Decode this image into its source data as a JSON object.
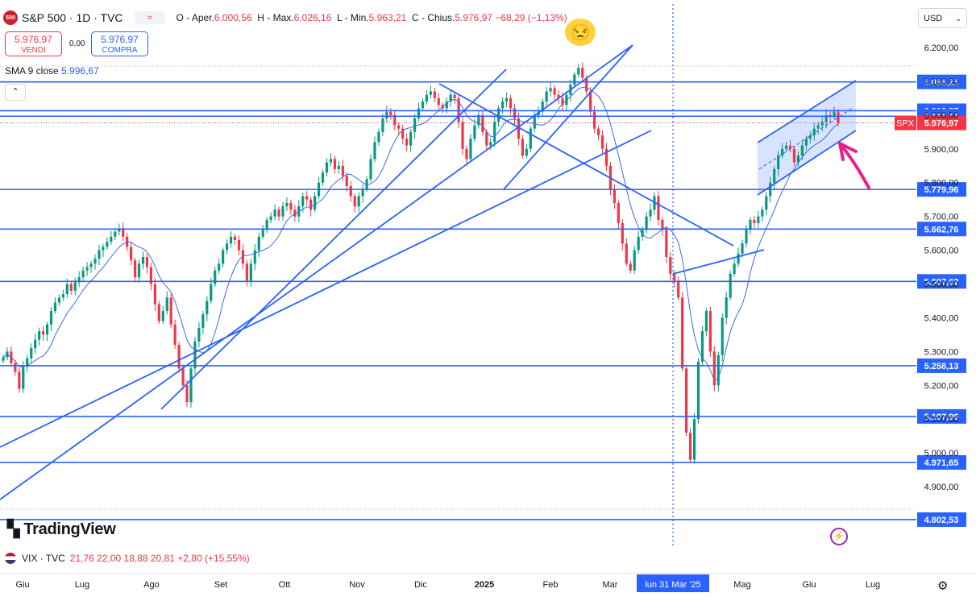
{
  "header": {
    "logo_text": "500",
    "symbol": "S&P 500 · 1D · TVC",
    "open": "6.000,56",
    "high": "6.026,16",
    "low": "5.963,21",
    "close": "5.976,97",
    "change": "−68,29 (−1,13%)",
    "labels": {
      "open": "O - Aper.",
      "high": "H - Max.",
      "low": "L - Min.",
      "close": "C - Chius."
    }
  },
  "trade": {
    "sell_price": "5.976,97",
    "sell_label": "VENDI",
    "spread": "0,00",
    "buy_price": "5.976,97",
    "buy_label": "COMPRA"
  },
  "indicator": {
    "label": "SMA 9 close",
    "value": "5.996,67"
  },
  "currency": "USD",
  "brand": "TradingView",
  "vix": {
    "label": "VIX · TVC",
    "values": "21,76  22,00  18,88  20,81  +2,80 (+15,55%)"
  },
  "colors": {
    "up": "#089981",
    "down": "#f23645",
    "line": "#2962ff",
    "annotation": "#e91e8c"
  },
  "chart_data": {
    "type": "candlestick",
    "symbol": "SPX",
    "y_axis_ticks": [
      "6.200,00",
      "6.100,00",
      "6.000,00",
      "5.900,00",
      "5.800,00",
      "5.700,00",
      "5.600,00",
      "5.500,00",
      "5.400,00",
      "5.300,00",
      "5.200,00",
      "5.100,00",
      "5.000,00",
      "4.900,00"
    ],
    "y_tick_values": [
      6200,
      6100,
      6000,
      5900,
      5800,
      5700,
      5600,
      5500,
      5400,
      5300,
      5200,
      5100,
      5000,
      4900
    ],
    "x_axis_labels": [
      "Giu",
      "Lug",
      "Ago",
      "Set",
      "Ott",
      "Nov",
      "Dic",
      "2025",
      "Feb",
      "Mar",
      "lun 31 Mar '25",
      "Mag",
      "Giu",
      "Lug"
    ],
    "horizontal_levels": [
      {
        "value": 6098.25,
        "label": "6.098,25"
      },
      {
        "value": 6012.87,
        "label": "6.012,87"
      },
      {
        "value": 5996.67,
        "label": "5.996,67"
      },
      {
        "value": 5976.97,
        "label": "5.976,97",
        "tag": "SPX"
      },
      {
        "value": 5779.96,
        "label": "5.779,96"
      },
      {
        "value": 5662.76,
        "label": "5.662,76"
      },
      {
        "value": 5507.62,
        "label": "5.507,62"
      },
      {
        "value": 5258.13,
        "label": "5.258,13"
      },
      {
        "value": 5107.96,
        "label": "5.107,96"
      },
      {
        "value": 4971.65,
        "label": "4.971,65"
      },
      {
        "value": 4802.53,
        "label": "4.802,53"
      }
    ],
    "closes": [
      5283,
      5300,
      5265,
      5240,
      5190,
      5255,
      5280,
      5310,
      5335,
      5360,
      5350,
      5380,
      5420,
      5445,
      5460,
      5470,
      5500,
      5480,
      5505,
      5520,
      5540,
      5550,
      5560,
      5575,
      5600,
      5610,
      5625,
      5640,
      5655,
      5665,
      5640,
      5610,
      5570,
      5520,
      5560,
      5580,
      5550,
      5500,
      5440,
      5390,
      5420,
      5460,
      5380,
      5320,
      5250,
      5200,
      5150,
      5250,
      5330,
      5370,
      5410,
      5450,
      5500,
      5540,
      5560,
      5600,
      5620,
      5640,
      5630,
      5600,
      5560,
      5510,
      5560,
      5600,
      5640,
      5660,
      5690,
      5700,
      5720,
      5700,
      5730,
      5740,
      5720,
      5700,
      5730,
      5760,
      5750,
      5720,
      5760,
      5800,
      5830,
      5860,
      5870,
      5840,
      5850,
      5820,
      5790,
      5760,
      5730,
      5760,
      5780,
      5810,
      5870,
      5920,
      5950,
      5990,
      6010,
      6000,
      5970,
      5960,
      5930,
      5910,
      5950,
      5990,
      6020,
      6040,
      6060,
      6070,
      6050,
      6030,
      6020,
      6040,
      6060,
      6050,
      5980,
      5900,
      5870,
      5930,
      5970,
      6000,
      5950,
      5910,
      5920,
      5980,
      6020,
      6040,
      6050,
      6020,
      5990,
      5930,
      5880,
      5900,
      5960,
      6000,
      6010,
      6040,
      6070,
      6080,
      6060,
      6050,
      6030,
      6060,
      6090,
      6120,
      6140,
      6110,
      6070,
      6010,
      5960,
      5940,
      5900,
      5850,
      5780,
      5740,
      5680,
      5620,
      5560,
      5540,
      5600,
      5640,
      5660,
      5700,
      5720,
      5760,
      5690,
      5660,
      5580,
      5530,
      5510,
      5460,
      5250,
      5060,
      4980,
      5100,
      5270,
      5360,
      5420,
      5300,
      5200,
      5290,
      5400,
      5460,
      5530,
      5560,
      5590,
      5620,
      5660,
      5690,
      5680,
      5700,
      5720,
      5760,
      5800,
      5840,
      5880,
      5900,
      5910,
      5900,
      5860,
      5880,
      5910,
      5930,
      5940,
      5960,
      5970,
      5980,
      6000,
      5995,
      6010,
      5976
    ]
  }
}
